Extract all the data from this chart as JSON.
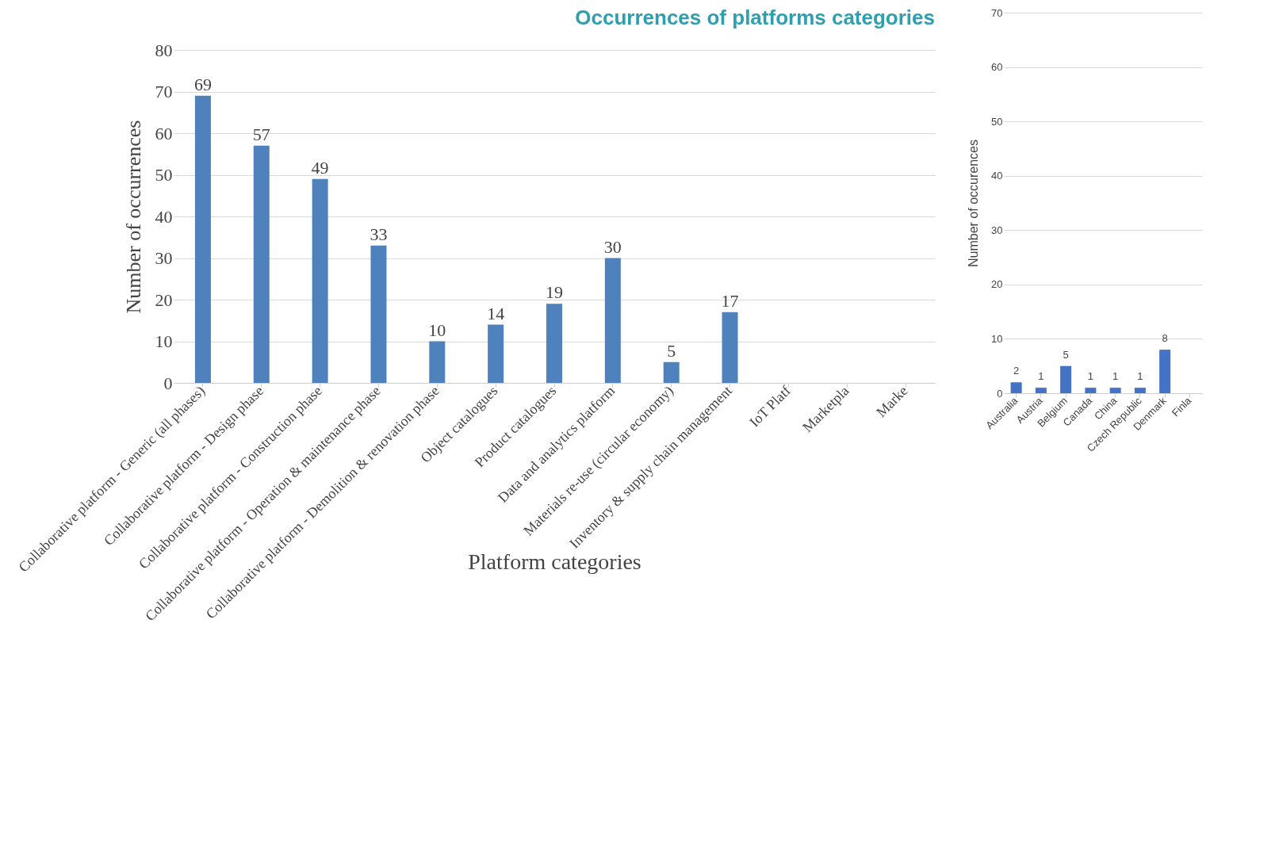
{
  "chart_data": [
    {
      "type": "bar",
      "title": "Occurrences of platforms categories",
      "xlabel": "Platform categories",
      "ylabel": "Number of occurrences",
      "categories": [
        "Collaborative platform - Generic (all phases)",
        "Collaborative platform - Design phase",
        "Collaborative platform - Construction phase",
        "Collaborative platform - Operation & maintenance phase",
        "Collaborative platform - Demolition & renovation phase",
        "Object catalogues",
        "Product catalogues",
        "Data and analytics platform",
        "Materials re-use (circular economy)",
        "Inventory & supply chain management",
        "IoT Platf",
        "Marketpla",
        "Marke"
      ],
      "values": [
        69,
        57,
        49,
        33,
        10,
        14,
        19,
        30,
        5,
        17,
        null,
        null,
        null
      ],
      "color": "#4f81bd",
      "ylim": [
        0,
        80
      ],
      "yticks": [
        0,
        10,
        20,
        30,
        40,
        50,
        60,
        70,
        80
      ],
      "grid": "y",
      "data_labels": true
    },
    {
      "type": "bar",
      "ylabel": "Number of occurences",
      "categories": [
        "Australia",
        "Austria",
        "Belgium",
        "Canada",
        "China",
        "Czech Republic",
        "Denmark",
        "Finla"
      ],
      "values": [
        2,
        1,
        5,
        1,
        1,
        1,
        8,
        null
      ],
      "color": "#4472c4",
      "ylim": [
        0,
        70
      ],
      "yticks": [
        0,
        10,
        20,
        30,
        40,
        50,
        60,
        70
      ],
      "grid": "y",
      "data_labels": true
    }
  ]
}
